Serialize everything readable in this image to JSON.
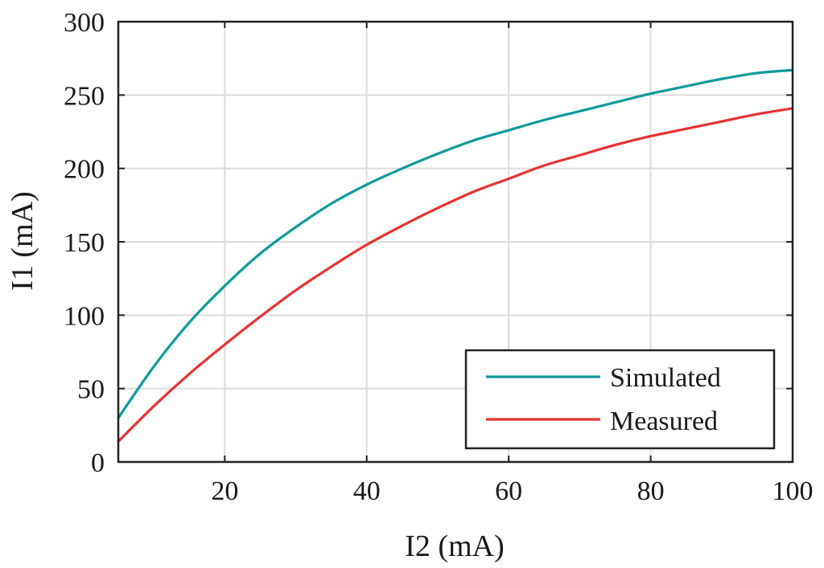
{
  "chart_data": {
    "type": "line",
    "title": "",
    "xlabel": "I2 (mA)",
    "ylabel": "I1 (mA)",
    "xlim": [
      5,
      100
    ],
    "ylim": [
      0,
      300
    ],
    "x_ticks": [
      20,
      40,
      60,
      80,
      100
    ],
    "y_ticks": [
      0,
      50,
      100,
      150,
      200,
      250,
      300
    ],
    "x_tick_labels": [
      "20",
      "40",
      "60",
      "80",
      "100"
    ],
    "y_tick_labels": [
      "0",
      "50",
      "100",
      "150",
      "200",
      "250",
      "300"
    ],
    "grid": true,
    "legend_position": "bottom-right",
    "series": [
      {
        "name": "Simulated",
        "color": "#0f9a9a",
        "x": [
          5,
          10,
          15,
          20,
          25,
          30,
          35,
          40,
          45,
          50,
          55,
          60,
          65,
          70,
          75,
          80,
          85,
          90,
          95,
          100
        ],
        "y": [
          30,
          65,
          95,
          120,
          142,
          160,
          176,
          189,
          200,
          210,
          219,
          226,
          233,
          239,
          245,
          251,
          256,
          261,
          265,
          267
        ]
      },
      {
        "name": "Measured",
        "color": "#e63232",
        "x": [
          5,
          10,
          15,
          20,
          25,
          30,
          35,
          40,
          45,
          50,
          55,
          60,
          65,
          70,
          75,
          80,
          85,
          90,
          95,
          100
        ],
        "y": [
          14,
          38,
          60,
          80,
          99,
          117,
          133,
          148,
          161,
          173,
          184,
          193,
          202,
          209,
          216,
          222,
          227,
          232,
          237,
          241
        ]
      }
    ]
  }
}
